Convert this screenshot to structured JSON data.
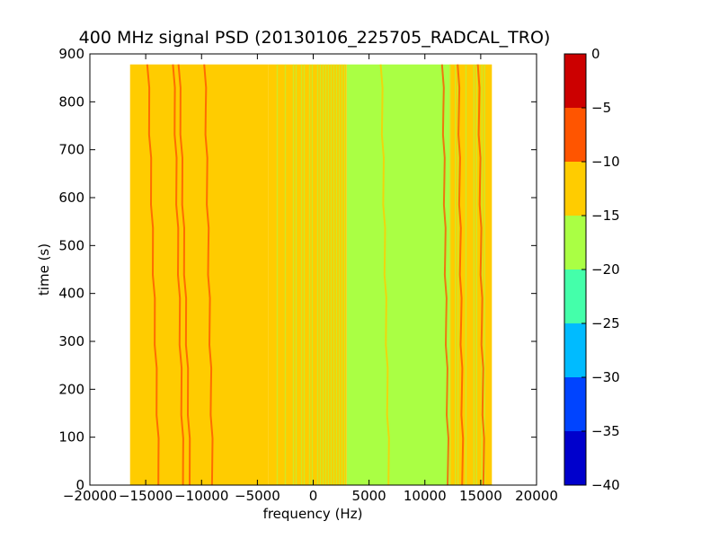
{
  "chart_data": {
    "type": "heatmap",
    "title": "400 MHz signal PSD (20130106_225705_RADCAL_TRO)",
    "xlabel": "frequency (Hz)",
    "ylabel": "time (s)",
    "xlim": [
      -20000,
      20000
    ],
    "ylim": [
      0,
      900
    ],
    "xticks": [
      "−20000",
      "−15000",
      "−10000",
      "−5000",
      "0",
      "5000",
      "10000",
      "15000",
      "20000"
    ],
    "xtick_values": [
      -20000,
      -15000,
      -10000,
      -5000,
      0,
      5000,
      10000,
      15000,
      20000
    ],
    "yticks": [
      "0",
      "100",
      "200",
      "300",
      "400",
      "500",
      "600",
      "700",
      "800",
      "900"
    ],
    "ytick_values": [
      0,
      100,
      200,
      300,
      400,
      500,
      600,
      700,
      800,
      900
    ],
    "data_extent": {
      "x": [
        -16400,
        16000
      ],
      "y": [
        0,
        878
      ]
    },
    "regions": [
      {
        "x_start": -16400,
        "x_end": -4000,
        "level": "-15 to -10"
      },
      {
        "x_start": -4000,
        "x_end": 3000,
        "level": "mixed -15 to -10 / -20 to -15"
      },
      {
        "x_start": 3000,
        "x_end": 12200,
        "level": "-20 to -15"
      },
      {
        "x_start": 12200,
        "x_end": 16000,
        "level": "mixed -15 to -10 / -20 to -15"
      }
    ],
    "signal_lines": [
      {
        "x_bottom": -13800,
        "x_top": -14800,
        "level": "-10 to -5"
      },
      {
        "x_bottom": -11600,
        "x_top": -12500,
        "level": "-10 to -5"
      },
      {
        "x_bottom": -11000,
        "x_top": -12000,
        "level": "-10 to -5"
      },
      {
        "x_bottom": -9000,
        "x_top": -9700,
        "level": "-10 to -5"
      },
      {
        "x_bottom": 6800,
        "x_top": 6100,
        "level": "-15 to -10"
      },
      {
        "x_bottom": 12100,
        "x_top": 11600,
        "level": "-10 to -5"
      },
      {
        "x_bottom": 13400,
        "x_top": 13000,
        "level": "-10 to -5"
      },
      {
        "x_bottom": 15300,
        "x_top": 14800,
        "level": "-10 to -5"
      }
    ],
    "colorbar": {
      "range": [
        -40,
        0
      ],
      "ticks": [
        "0",
        "−5",
        "−10",
        "−15",
        "−20",
        "−25",
        "−30",
        "−35",
        "−40"
      ],
      "tick_values": [
        0,
        -5,
        -10,
        -15,
        -20,
        -25,
        -30,
        -35,
        -40
      ],
      "bands": [
        {
          "from": -40,
          "to": -35,
          "color": "#0000cc"
        },
        {
          "from": -35,
          "to": -30,
          "color": "#0044ff"
        },
        {
          "from": -30,
          "to": -25,
          "color": "#00bbff"
        },
        {
          "from": -25,
          "to": -20,
          "color": "#44ffaa"
        },
        {
          "from": -20,
          "to": -15,
          "color": "#aaff44"
        },
        {
          "from": -15,
          "to": -10,
          "color": "#ffcc00"
        },
        {
          "from": -10,
          "to": -5,
          "color": "#ff5500"
        },
        {
          "from": -5,
          "to": 0,
          "color": "#cc0000"
        }
      ]
    }
  }
}
